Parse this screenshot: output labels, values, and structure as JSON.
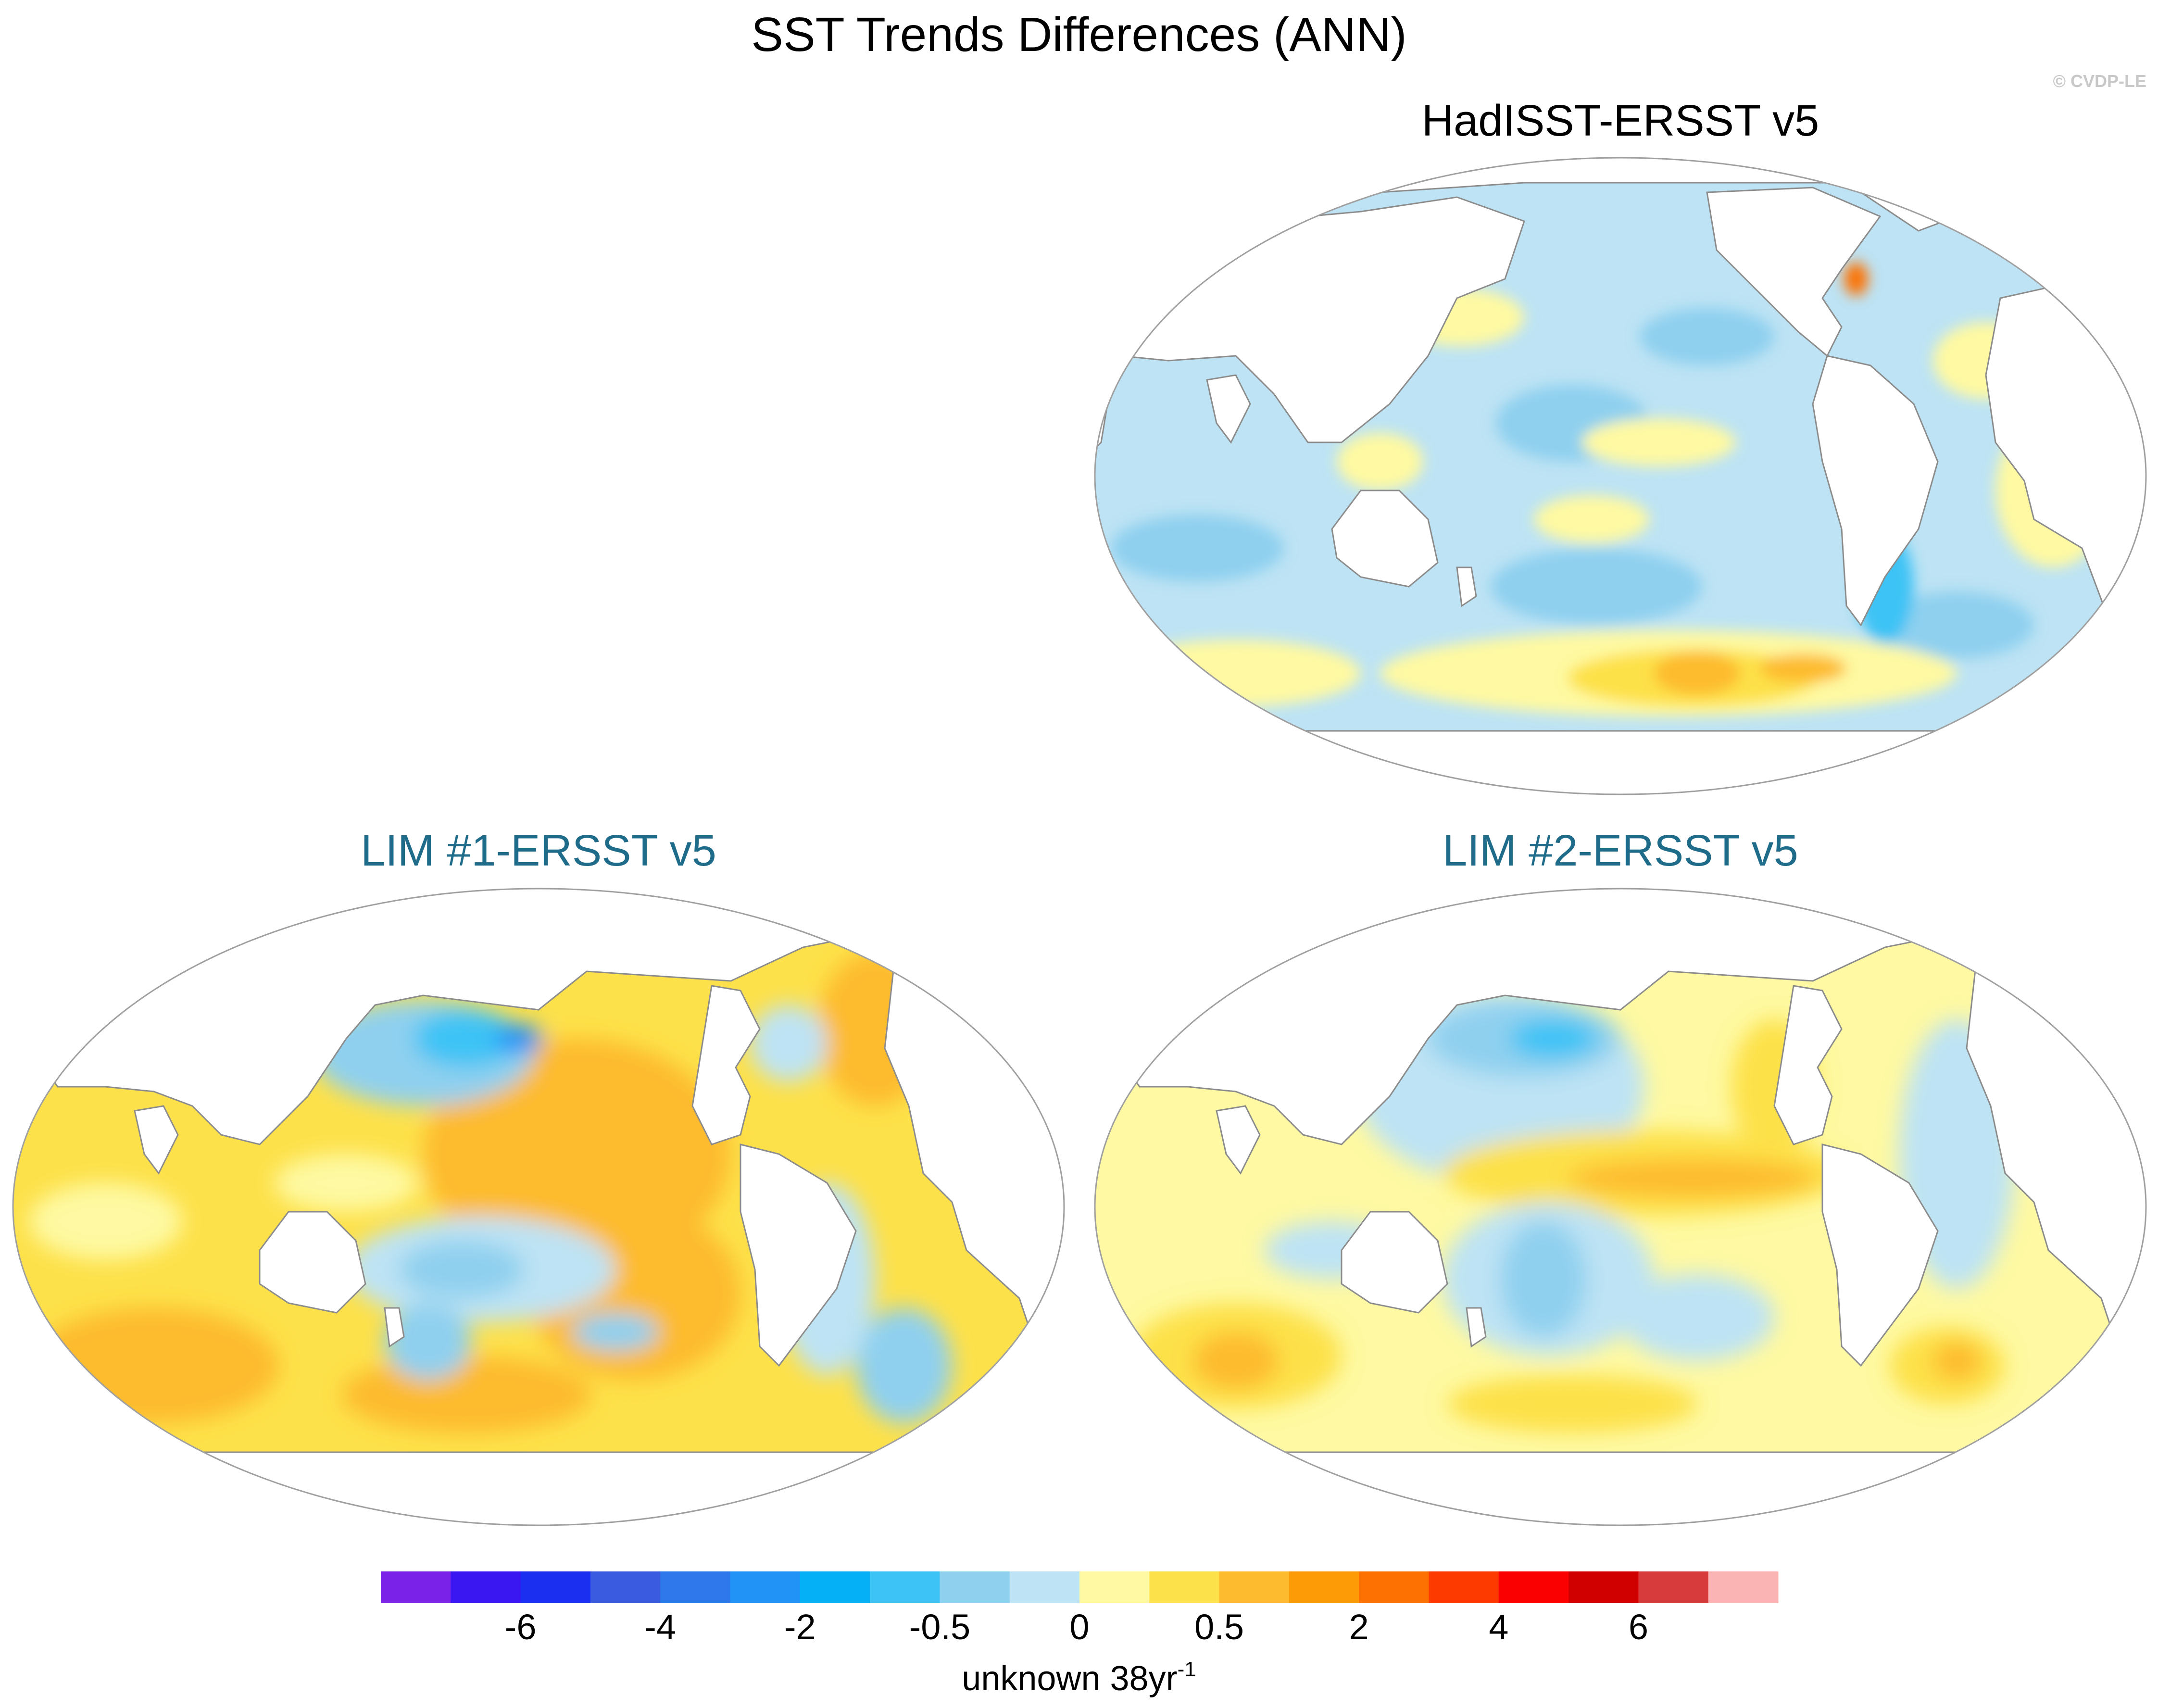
{
  "title": "SST Trends Differences (ANN)",
  "credit": "© CVDP-LE",
  "colors": {
    "land": "#ffffff",
    "coast": "#8c8c8c",
    "lim_title": "#1f6b8a"
  },
  "chart_data": [
    {
      "type": "heatmap",
      "title": "HadISST-ERSST v5",
      "projection": "Robinson (Pacific-centered)",
      "description_levels": "mostly light-blue (-0.5 to 0) with yellow (0 to 0.5) patches; orange (0.5 to 2) in Southern Ocean"
    },
    {
      "type": "heatmap",
      "title": "LIM #1-ERSST v5",
      "projection": "Robinson (Pacific-centered)",
      "description_levels": "orange (0.5 to 2) over eastern/central Pacific and Southern Ocean; blue (-2 to -0.5) in North Pacific"
    },
    {
      "type": "heatmap",
      "title": "LIM #2-ERSST v5",
      "projection": "Robinson (Pacific-centered)",
      "description_levels": "yellow-orange tongue along equatorial Pacific; light-blue western Pacific and Atlantic"
    }
  ],
  "colorbar": {
    "colors": [
      "#7b22e8",
      "#3a17f0",
      "#1b2ff0",
      "#3a5ae0",
      "#2f78ec",
      "#2192f6",
      "#06b0f6",
      "#3dc3f5",
      "#8fd0ef",
      "#bde3f4",
      "#fef9a2",
      "#fde14a",
      "#fdbb2f",
      "#fd9b06",
      "#fd7102",
      "#fd3b00",
      "#fa0000",
      "#d10000",
      "#d83b3b",
      "#fbb4b4"
    ],
    "labels": [
      "-6",
      "-4",
      "-2",
      "-0.5",
      "0",
      "0.5",
      "2",
      "4",
      "6"
    ],
    "label_edges": [
      2,
      4,
      6,
      8,
      10,
      12,
      14,
      16,
      18
    ],
    "units_main": "unknown 38yr",
    "units_sup": "-1"
  }
}
